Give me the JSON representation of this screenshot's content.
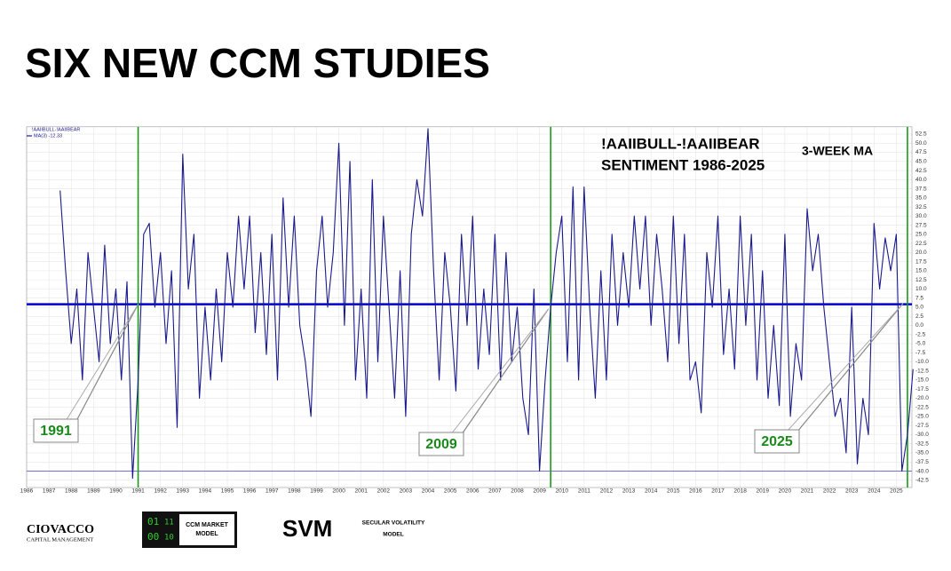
{
  "slide_title": "SIX NEW CCM STUDIES",
  "chart_data": {
    "type": "line",
    "title": [
      "!AAIIBULL-!AAIIBEAR",
      "SENTIMENT 1986-2025"
    ],
    "subtitle": "3-WEEK MA",
    "legend_title": "!AAIIBULL-!AAIIBEAR",
    "series": [
      {
        "name": "MA(3) -12.33",
        "color": "#1a1a8c",
        "x": [
          1987.5,
          1987.75,
          1988,
          1988.25,
          1988.5,
          1988.75,
          1989,
          1989.25,
          1989.5,
          1989.75,
          1990,
          1990.25,
          1990.5,
          1990.75,
          1991,
          1991.25,
          1991.5,
          1991.75,
          1992,
          1992.25,
          1992.5,
          1992.75,
          1993,
          1993.25,
          1993.5,
          1993.75,
          1994,
          1994.25,
          1994.5,
          1994.75,
          1995,
          1995.25,
          1995.5,
          1995.75,
          1996,
          1996.25,
          1996.5,
          1996.75,
          1997,
          1997.25,
          1997.5,
          1997.75,
          1998,
          1998.25,
          1998.5,
          1998.75,
          1999,
          1999.25,
          1999.5,
          1999.75,
          2000,
          2000.25,
          2000.5,
          2000.75,
          2001,
          2001.25,
          2001.5,
          2001.75,
          2002,
          2002.25,
          2002.5,
          2002.75,
          2003,
          2003.25,
          2003.5,
          2003.75,
          2004,
          2004.25,
          2004.5,
          2004.75,
          2005,
          2005.25,
          2005.5,
          2005.75,
          2006,
          2006.25,
          2006.5,
          2006.75,
          2007,
          2007.25,
          2007.5,
          2007.75,
          2008,
          2008.25,
          2008.5,
          2008.75,
          2009,
          2009.25,
          2009.5,
          2009.75,
          2010,
          2010.25,
          2010.5,
          2010.75,
          2011,
          2011.25,
          2011.5,
          2011.75,
          2012,
          2012.25,
          2012.5,
          2012.75,
          2013,
          2013.25,
          2013.5,
          2013.75,
          2014,
          2014.25,
          2014.5,
          2014.75,
          2015,
          2015.25,
          2015.5,
          2015.75,
          2016,
          2016.25,
          2016.5,
          2016.75,
          2017,
          2017.25,
          2017.5,
          2017.75,
          2018,
          2018.25,
          2018.5,
          2018.75,
          2019,
          2019.25,
          2019.5,
          2019.75,
          2020,
          2020.25,
          2020.5,
          2020.75,
          2021,
          2021.25,
          2021.5,
          2021.75,
          2022,
          2022.25,
          2022.5,
          2022.75,
          2023,
          2023.25,
          2023.5,
          2023.75,
          2024,
          2024.25,
          2024.5,
          2024.75,
          2025,
          2025.25,
          2025.5,
          2025.75
        ],
        "values": [
          37,
          15,
          -5,
          10,
          -15,
          20,
          5,
          -10,
          22,
          -5,
          10,
          -15,
          12,
          -42,
          -15,
          25,
          28,
          5,
          20,
          -5,
          15,
          -28,
          47,
          10,
          25,
          -20,
          5,
          -15,
          10,
          -10,
          20,
          5,
          30,
          10,
          30,
          -2,
          20,
          -8,
          25,
          -15,
          35,
          5,
          30,
          0,
          -10,
          -25,
          15,
          30,
          5,
          20,
          50,
          0,
          45,
          -15,
          10,
          -20,
          40,
          -10,
          30,
          5,
          -20,
          15,
          -25,
          25,
          40,
          30,
          54,
          15,
          -15,
          20,
          5,
          -18,
          25,
          0,
          30,
          -12,
          10,
          -8,
          25,
          -15,
          20,
          -10,
          5,
          -20,
          -30,
          10,
          -40,
          -15,
          5,
          20,
          30,
          -10,
          38,
          -15,
          38,
          5,
          -20,
          15,
          -15,
          25,
          0,
          20,
          5,
          30,
          10,
          30,
          0,
          25,
          10,
          -10,
          30,
          -5,
          25,
          -15,
          -10,
          -24,
          20,
          5,
          30,
          -8,
          10,
          -12,
          30,
          0,
          25,
          -15,
          15,
          -20,
          0,
          -22,
          25,
          -25,
          -5,
          -15,
          32,
          15,
          25,
          5,
          -10,
          -25,
          -20,
          -35,
          5,
          -38,
          -20,
          -30,
          28,
          10,
          24,
          15,
          25,
          -40,
          -30,
          -12
        ]
      }
    ],
    "hlines": [
      {
        "value": 5.8,
        "color": "#0000cc"
      },
      {
        "value": -40,
        "color": "#4a4acc"
      }
    ],
    "vlines": [
      1991,
      2009.5,
      2025.5
    ],
    "vline_color": "#1a9a1a",
    "annotations": [
      {
        "text": "1991",
        "x": 1991,
        "y": 5.8
      },
      {
        "text": "2009",
        "x": 2009.4,
        "y": 4.5
      },
      {
        "text": "2025",
        "x": 2025.3,
        "y": 6
      }
    ],
    "xlim": [
      1986,
      2025.7
    ],
    "ylim": [
      -44.5,
      54.5
    ],
    "grid": true,
    "xticks": [
      1986,
      1987,
      1988,
      1989,
      1990,
      1991,
      1992,
      1993,
      1994,
      1995,
      1996,
      1997,
      1998,
      1999,
      2000,
      2001,
      2002,
      2003,
      2004,
      2005,
      2006,
      2007,
      2008,
      2009,
      2010,
      2011,
      2012,
      2013,
      2014,
      2015,
      2016,
      2017,
      2018,
      2019,
      2020,
      2021,
      2022,
      2023,
      2024,
      2025
    ],
    "yticks": [
      52.5,
      {
        "value": 50,
        "label": "50.0"
      },
      47.5,
      {
        "value": 45,
        "label": "45.0"
      },
      42.5,
      {
        "value": 40,
        "label": "40.0"
      },
      37.5,
      {
        "value": 35,
        "label": "35.0"
      },
      32.5,
      {
        "value": 30,
        "label": "30.0"
      },
      27.5,
      {
        "value": 25,
        "label": "25.0"
      },
      22.5,
      {
        "value": 20,
        "label": "20.0"
      },
      17.5,
      {
        "value": 15,
        "label": "15.0"
      },
      12.5,
      {
        "value": 10,
        "label": "10.0"
      },
      7.5,
      {
        "value": 5,
        "label": "5.0"
      },
      2.5,
      {
        "value": 0,
        "label": "0.0"
      },
      -2.5,
      {
        "value": -5,
        "label": "-5.0"
      },
      -7.5,
      {
        "value": -10,
        "label": "-10.0"
      },
      -12.5,
      {
        "value": -15,
        "label": "-15.0"
      },
      -17.5,
      {
        "value": -20,
        "label": "-20.0"
      },
      -22.5,
      {
        "value": -25,
        "label": "-25.0"
      },
      -27.5,
      {
        "value": -30,
        "label": "-30.0"
      },
      -32.5,
      {
        "value": -35,
        "label": "-35.0"
      },
      -37.5,
      {
        "value": -40,
        "label": "-40.0"
      },
      -42.5
    ]
  },
  "footer": {
    "ciovacco": [
      "CIOVACCO",
      "CAPITAL MANAGEMENT"
    ],
    "ccm_digits": [
      "01",
      "11",
      "00",
      "10"
    ],
    "ccm": [
      "CCM MARKET",
      "MODEL"
    ],
    "svm": "SVM",
    "svm_label": [
      "SECULAR VOLATILITY",
      "MODEL"
    ]
  }
}
